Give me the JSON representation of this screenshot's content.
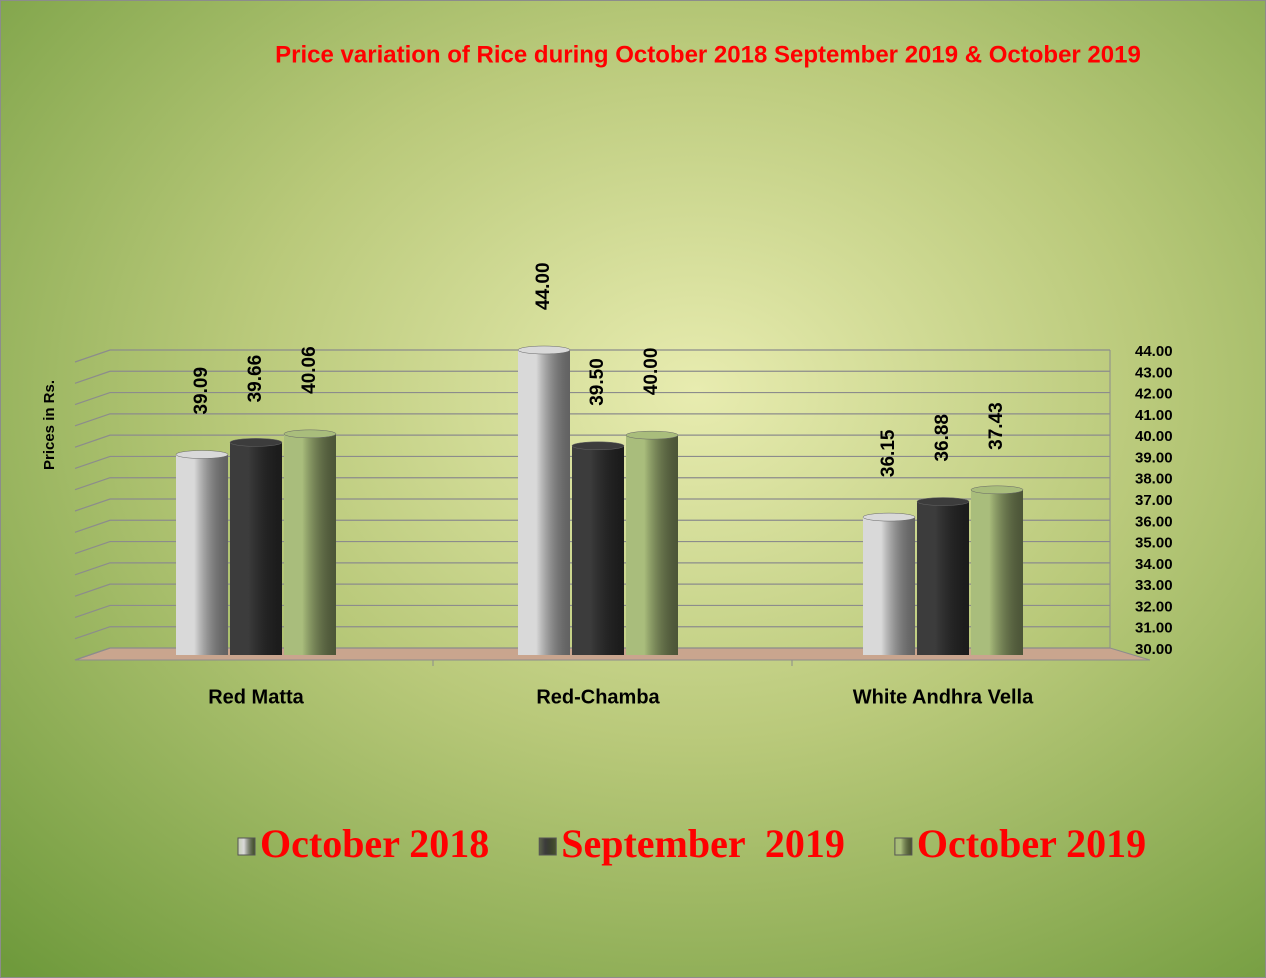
{
  "chart_data": {
    "type": "bar",
    "title": "Price variation of Rice during  October 2018  September  2019  &  October 2019",
    "y_label": "Prices in Rs.",
    "categories": [
      "Red Matta",
      "Red-Chamba",
      "White Andhra Vella"
    ],
    "series": [
      {
        "name": "October 2018",
        "color": "#d9d9d9",
        "values": [
          39.09,
          44,
          36.15
        ],
        "value_labels": [
          "39.09",
          "44.00",
          "36.15"
        ]
      },
      {
        "name": "September  2019",
        "color": "#3c3c3c",
        "values": [
          39.66,
          39.5,
          36.88
        ],
        "value_labels": [
          "39.66",
          "39.50",
          "36.88"
        ]
      },
      {
        "name": "October 2019",
        "color": "#a9bd7c",
        "values": [
          40.06,
          40,
          37.43
        ],
        "value_labels": [
          "40.06",
          "40.00",
          "37.43"
        ]
      }
    ],
    "ylim": [
      30,
      44
    ],
    "yticks": [
      {
        "value": 30,
        "label": "30.00"
      },
      {
        "value": 31,
        "label": "31.00"
      },
      {
        "value": 32,
        "label": "32.00"
      },
      {
        "value": 33,
        "label": "33.00"
      },
      {
        "value": 34,
        "label": "34.00"
      },
      {
        "value": 35,
        "label": "35.00"
      },
      {
        "value": 36,
        "label": "36.00"
      },
      {
        "value": 37,
        "label": "37.00"
      },
      {
        "value": 38,
        "label": "38.00"
      },
      {
        "value": 39,
        "label": "39.00"
      },
      {
        "value": 40,
        "label": "40.00"
      },
      {
        "value": 41,
        "label": "41.00"
      },
      {
        "value": 42,
        "label": "42.00"
      },
      {
        "value": 43,
        "label": "43.00"
      },
      {
        "value": 44,
        "label": "44.00"
      }
    ],
    "y_axis_side": "right",
    "grid": true,
    "legend": "bottom"
  }
}
